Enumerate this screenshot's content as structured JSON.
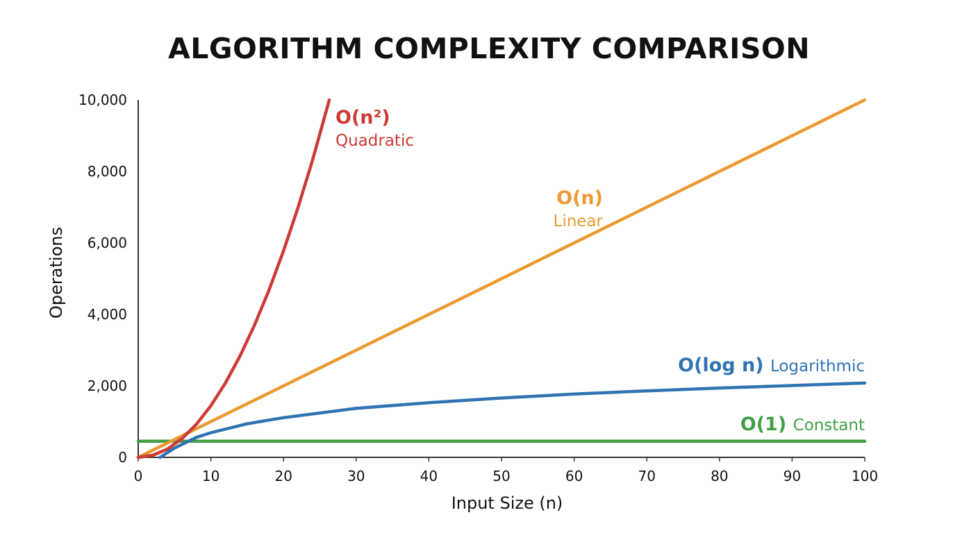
{
  "chart_data": {
    "type": "line",
    "title": "ALGORITHM COMPLEXITY COMPARISON",
    "xlabel": "Input Size (n)",
    "ylabel": "Operations",
    "xlim": [
      0,
      100
    ],
    "ylim": [
      0,
      10000
    ],
    "x_ticks": [
      0,
      10,
      20,
      30,
      40,
      50,
      60,
      70,
      80,
      90,
      100
    ],
    "y_ticks": [
      0,
      2000,
      4000,
      6000,
      8000,
      10000
    ],
    "x_tick_labels": [
      "0",
      "10",
      "20",
      "30",
      "40",
      "50",
      "60",
      "70",
      "80",
      "90",
      "100"
    ],
    "y_tick_labels": [
      "0",
      "2,000",
      "4,000",
      "6,000",
      "8,000",
      "10,000"
    ],
    "grid": false,
    "legend": "inline labels",
    "series": [
      {
        "name": "O(n²)",
        "description": "Quadratic",
        "color": "#cc3a35",
        "x": [
          0,
          2,
          4,
          6,
          8,
          10,
          12,
          14,
          16,
          18,
          20,
          22,
          24,
          26.3
        ],
        "y": [
          0,
          58,
          230,
          520,
          925,
          1445,
          2080,
          2830,
          3700,
          4680,
          5780,
          6990,
          8320,
          10000
        ]
      },
      {
        "name": "O(n)",
        "description": "Linear",
        "color": "#ec9930",
        "x": [
          0,
          100
        ],
        "y": [
          0,
          10000
        ]
      },
      {
        "name": "O(log n)",
        "description": "Logarithmic",
        "color": "#2f73b3",
        "x": [
          3,
          5,
          8,
          10,
          15,
          20,
          30,
          40,
          50,
          60,
          70,
          80,
          90,
          100
        ],
        "y": [
          0,
          260,
          560,
          690,
          940,
          1110,
          1370,
          1530,
          1660,
          1770,
          1860,
          1940,
          2010,
          2080
        ]
      },
      {
        "name": "O(1)",
        "description": "Constant",
        "color": "#3f9f45",
        "x": [
          0,
          100
        ],
        "y": [
          450,
          450
        ]
      }
    ]
  }
}
